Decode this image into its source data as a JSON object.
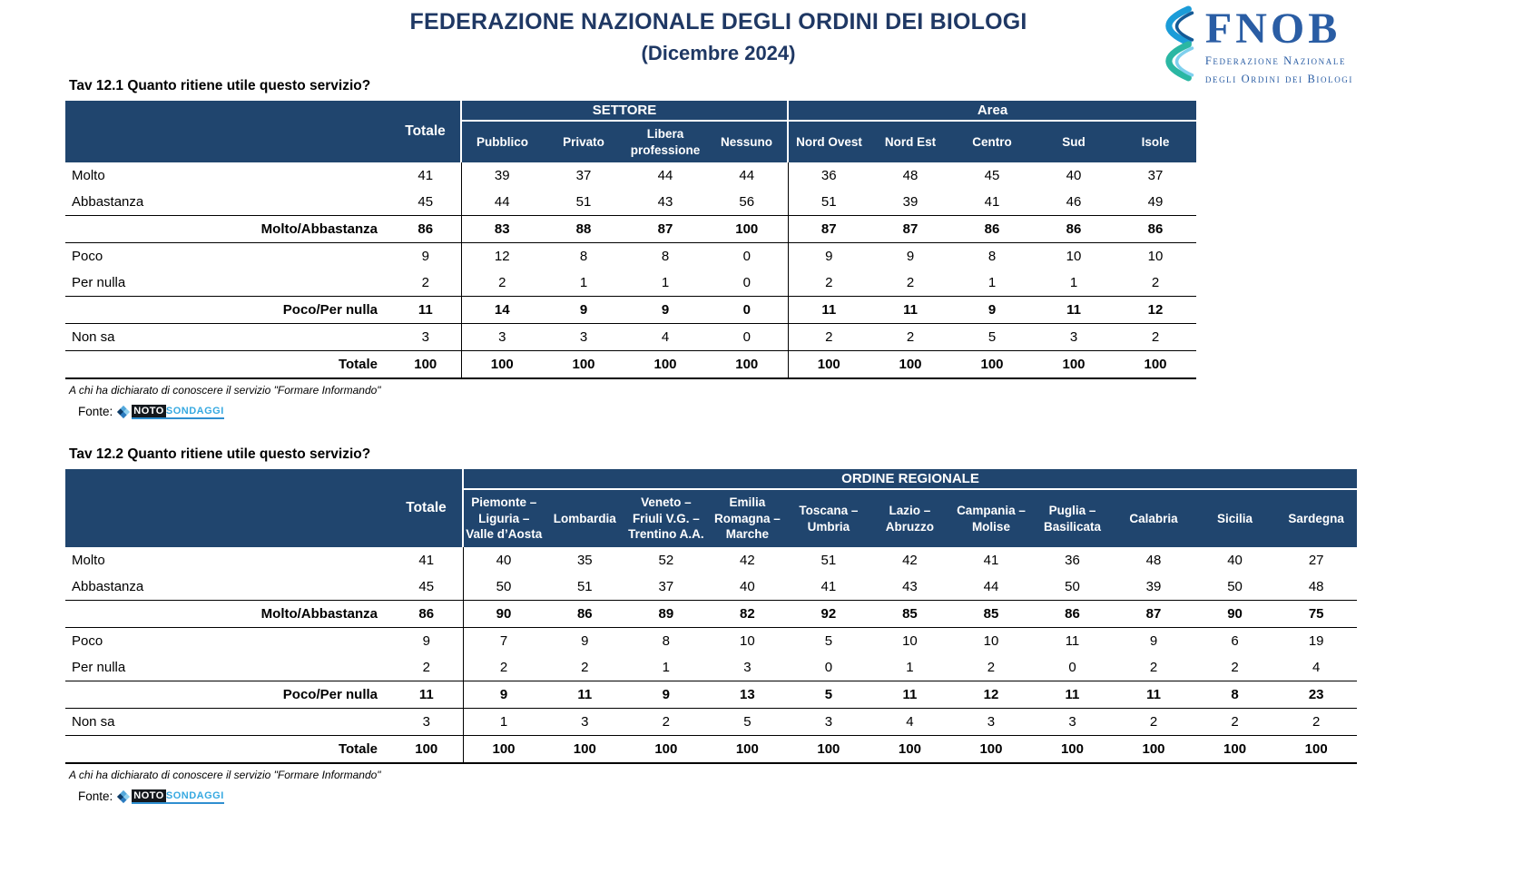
{
  "page": {
    "title": "FEDERAZIONE NAZIONALE DEGLI ORDINI DEI BIOLOGI",
    "subtitle": "(Dicembre 2024)"
  },
  "logo": {
    "acronym": "FNOB",
    "name_line1": "Federazione Nazionale",
    "name_line2": "degli Ordini dei Biologi"
  },
  "fonte_logo": {
    "prefix": "NOTO",
    "suffix": "SONDAGGI"
  },
  "colors": {
    "header_bg": "#20456e",
    "title_text": "#1f3864",
    "logo_blue": "#2a5da4",
    "noto_blue": "#36a9e1"
  },
  "tables": [
    {
      "caption": "Tav 12.1 Quanto ritiene utile questo servizio?",
      "totale_header": "Totale",
      "groups": [
        {
          "label": "SETTORE",
          "columns": [
            "Pubblico",
            "Privato",
            "Libera professione",
            "Nessuno"
          ]
        },
        {
          "label": "Area",
          "columns": [
            "Nord Ovest",
            "Nord Est",
            "Centro",
            "Sud",
            "Isole"
          ]
        }
      ],
      "rows": [
        {
          "label": "Molto",
          "type": "normal",
          "values": [
            41,
            39,
            37,
            44,
            44,
            36,
            48,
            45,
            40,
            37
          ]
        },
        {
          "label": "Abbastanza",
          "type": "normal",
          "values": [
            45,
            44,
            51,
            43,
            56,
            51,
            39,
            41,
            46,
            49
          ]
        },
        {
          "label": "Molto/Abbastanza",
          "type": "summary",
          "values": [
            86,
            83,
            88,
            87,
            100,
            87,
            87,
            86,
            86,
            86
          ]
        },
        {
          "label": "Poco",
          "type": "normal",
          "values": [
            9,
            12,
            8,
            8,
            0,
            9,
            9,
            8,
            10,
            10
          ]
        },
        {
          "label": "Per nulla",
          "type": "normal",
          "values": [
            2,
            2,
            1,
            1,
            0,
            2,
            2,
            1,
            1,
            2
          ]
        },
        {
          "label": "Poco/Per nulla",
          "type": "summary",
          "values": [
            11,
            14,
            9,
            9,
            0,
            11,
            11,
            9,
            11,
            12
          ]
        },
        {
          "label": "Non sa",
          "type": "normal",
          "values": [
            3,
            3,
            3,
            4,
            0,
            2,
            2,
            5,
            3,
            2
          ]
        },
        {
          "label": "Totale",
          "type": "summary",
          "values": [
            100,
            100,
            100,
            100,
            100,
            100,
            100,
            100,
            100,
            100
          ]
        }
      ],
      "footnote": "A chi ha dichiarato di conoscere il servizio \"Formare Informando\"",
      "fonte_label": "Fonte:"
    },
    {
      "caption": "Tav 12.2 Quanto ritiene utile questo servizio?",
      "totale_header": "Totale",
      "groups": [
        {
          "label": "ORDINE REGIONALE",
          "columns": [
            "Piemonte – Liguria – Valle d’Aosta",
            "Lombardia",
            "Veneto – Friuli V.G. – Trentino A.A.",
            "Emilia Romagna – Marche",
            "Toscana – Umbria",
            "Lazio – Abruzzo",
            "Campania – Molise",
            "Puglia – Basilicata",
            "Calabria",
            "Sicilia",
            "Sardegna"
          ]
        }
      ],
      "rows": [
        {
          "label": "Molto",
          "type": "normal",
          "values": [
            41,
            40,
            35,
            52,
            42,
            51,
            42,
            41,
            36,
            48,
            40,
            27
          ]
        },
        {
          "label": "Abbastanza",
          "type": "normal",
          "values": [
            45,
            50,
            51,
            37,
            40,
            41,
            43,
            44,
            50,
            39,
            50,
            48
          ]
        },
        {
          "label": "Molto/Abbastanza",
          "type": "summary",
          "values": [
            86,
            90,
            86,
            89,
            82,
            92,
            85,
            85,
            86,
            87,
            90,
            75
          ]
        },
        {
          "label": "Poco",
          "type": "normal",
          "values": [
            9,
            7,
            9,
            8,
            10,
            5,
            10,
            10,
            11,
            9,
            6,
            19
          ]
        },
        {
          "label": "Per nulla",
          "type": "normal",
          "values": [
            2,
            2,
            2,
            1,
            3,
            0,
            1,
            2,
            0,
            2,
            2,
            4
          ]
        },
        {
          "label": "Poco/Per nulla",
          "type": "summary",
          "values": [
            11,
            9,
            11,
            9,
            13,
            5,
            11,
            12,
            11,
            11,
            8,
            23
          ]
        },
        {
          "label": "Non sa",
          "type": "normal",
          "values": [
            3,
            1,
            3,
            2,
            5,
            3,
            4,
            3,
            3,
            2,
            2,
            2
          ]
        },
        {
          "label": "Totale",
          "type": "summary",
          "values": [
            100,
            100,
            100,
            100,
            100,
            100,
            100,
            100,
            100,
            100,
            100,
            100
          ]
        }
      ],
      "footnote": "A chi ha dichiarato di conoscere il servizio \"Formare Informando\"",
      "fonte_label": "Fonte:"
    }
  ]
}
